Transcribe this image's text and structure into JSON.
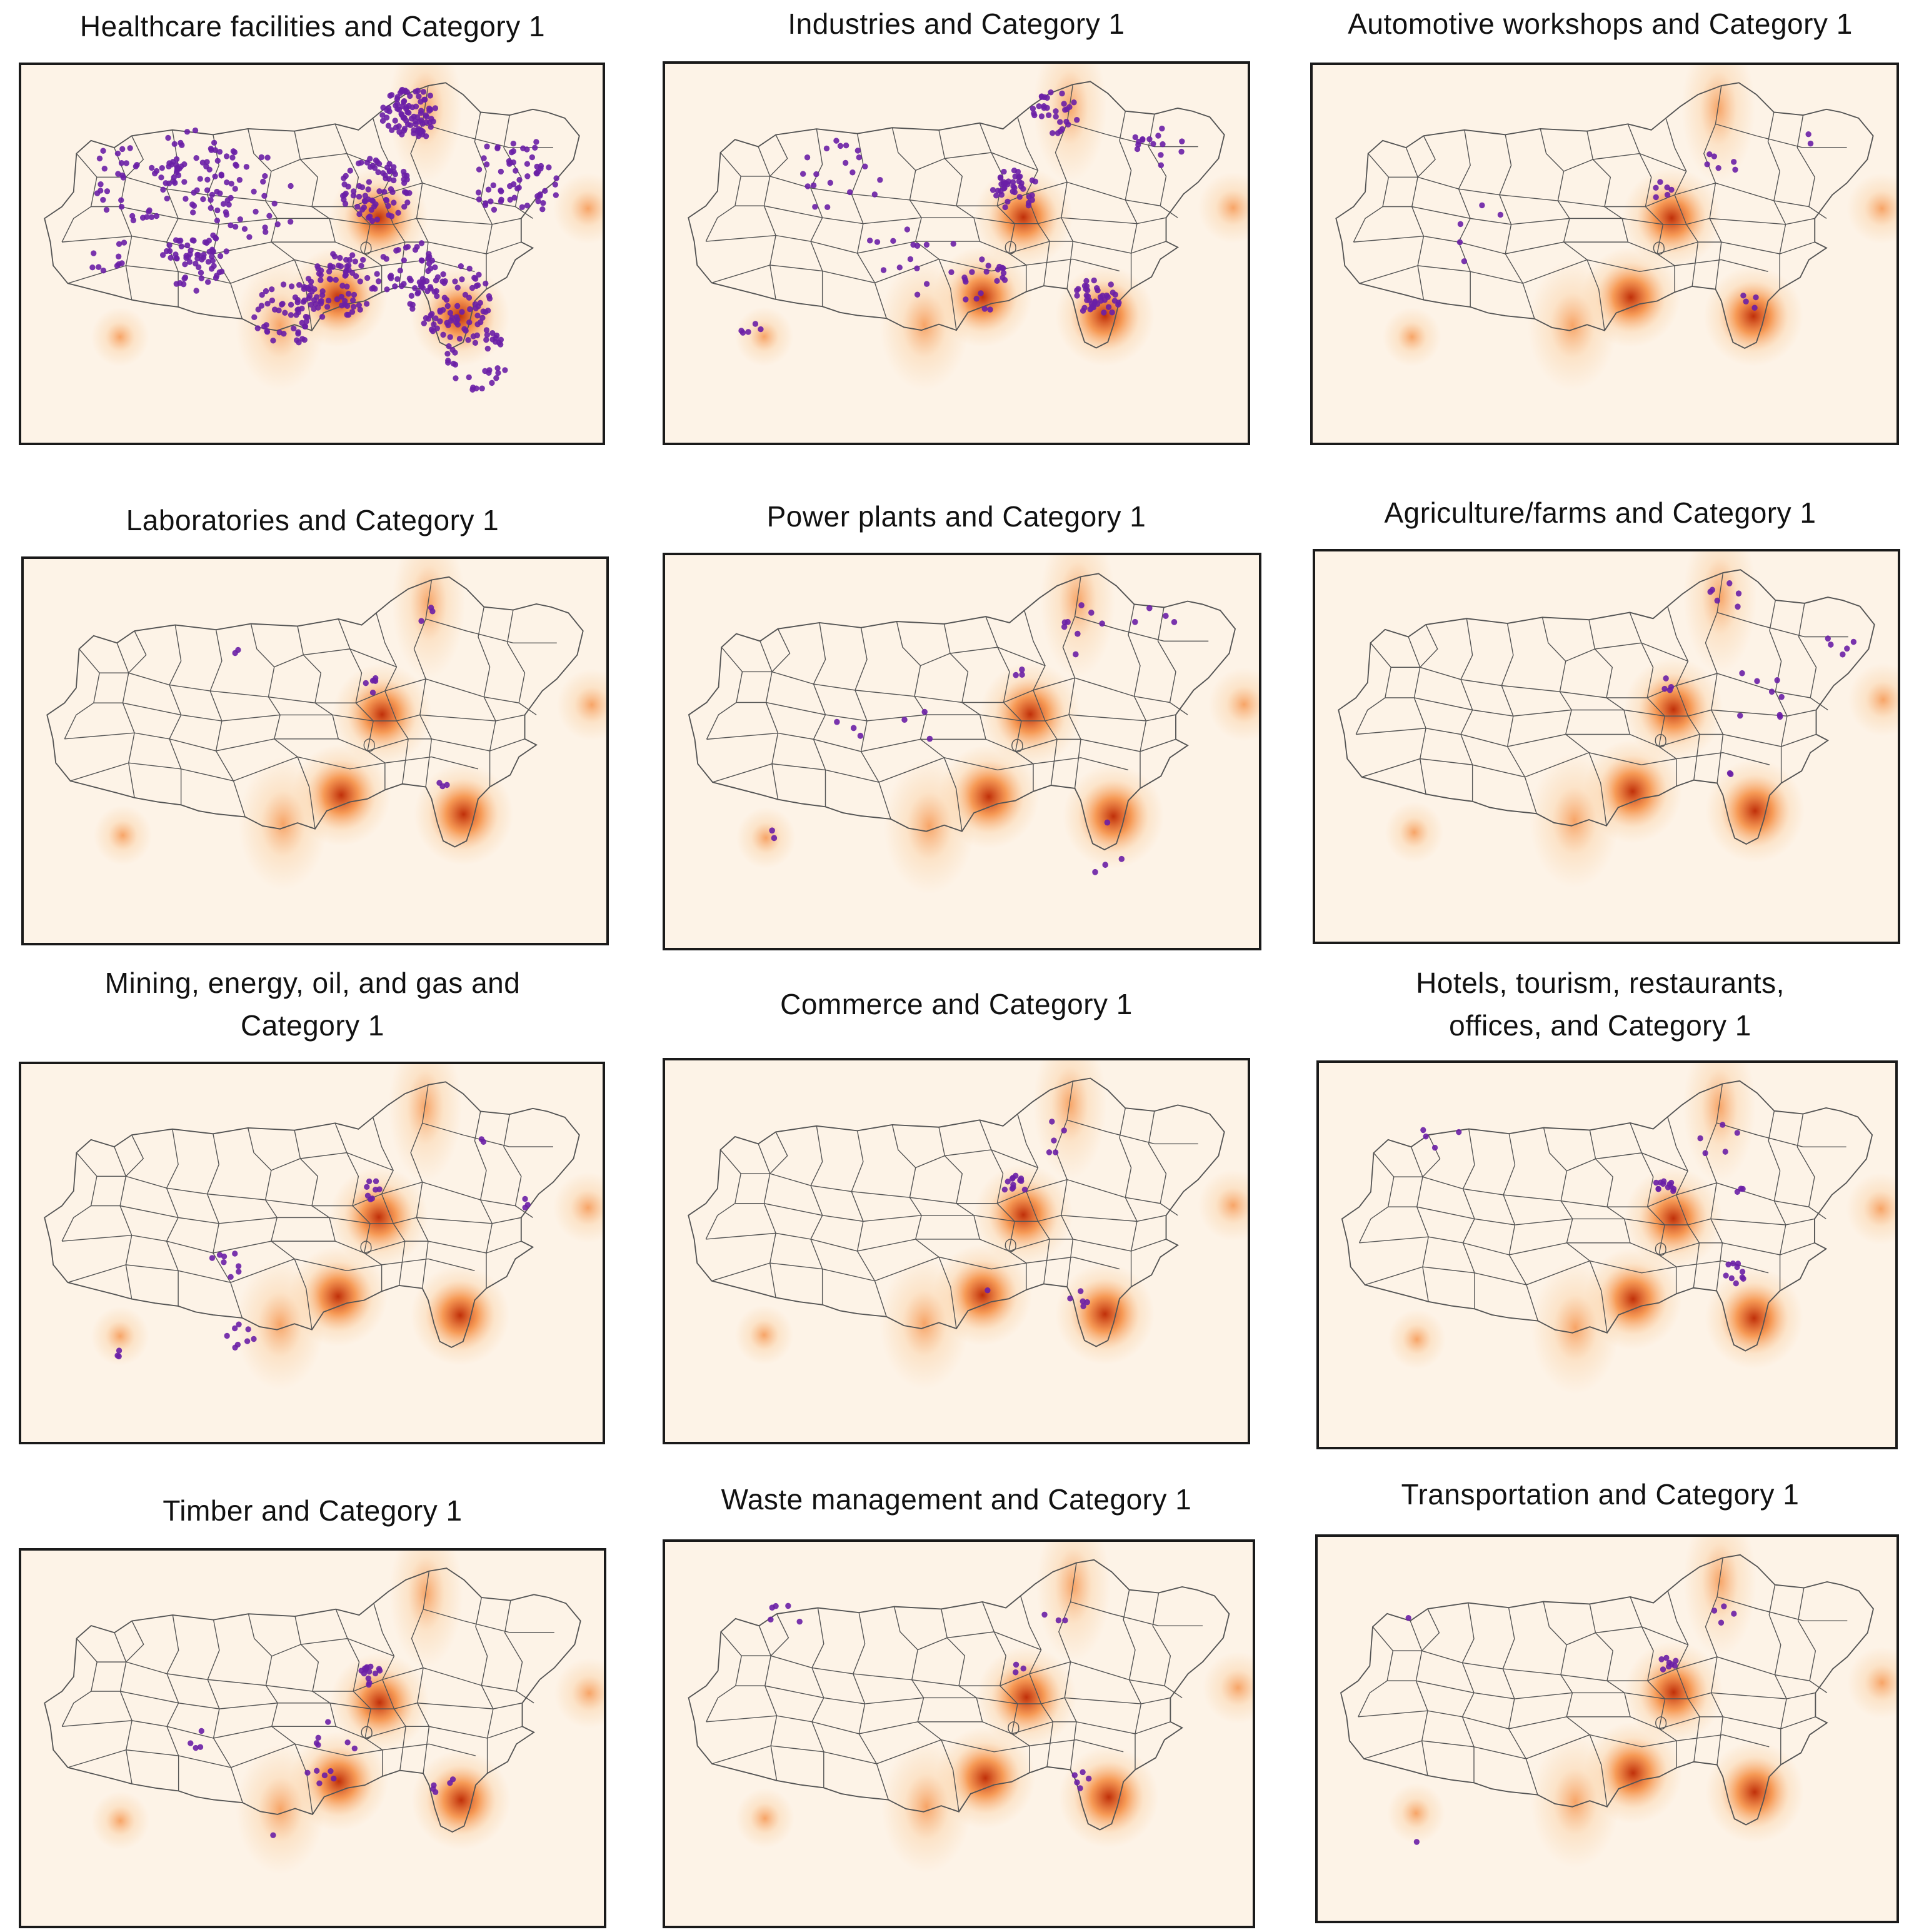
{
  "figure": {
    "colors": {
      "background": "#fdf3e7",
      "boundary": "#555555",
      "point": "#6a1fa6",
      "heat_low": "#fbd7b0",
      "heat_mid": "#f58a3c",
      "heat_high": "#c0300a"
    },
    "panels": [
      {
        "title": [
          "Healthcare facilities and Category 1"
        ],
        "density": "very-high"
      },
      {
        "title": [
          "Industries and Category 1"
        ],
        "density": "high"
      },
      {
        "title": [
          "Automotive workshops and Category 1"
        ],
        "density": "low"
      },
      {
        "title": [
          "Laboratories and Category 1"
        ],
        "density": "low"
      },
      {
        "title": [
          "Power plants and Category 1"
        ],
        "density": "low"
      },
      {
        "title": [
          "Agriculture/farms and Category 1"
        ],
        "density": "low"
      },
      {
        "title": [
          "Mining, energy, oil, and gas and",
          "Category 1"
        ],
        "density": "low"
      },
      {
        "title": [
          "Commerce and Category 1"
        ],
        "density": "low"
      },
      {
        "title": [
          "Hotels, tourism, restaurants,",
          "offices, and Category 1"
        ],
        "density": "low"
      },
      {
        "title": [
          "Timber and Category 1"
        ],
        "density": "low"
      },
      {
        "title": [
          "Waste management and Category 1"
        ],
        "density": "low"
      },
      {
        "title": [
          "Transportation and Category 1"
        ],
        "density": "low"
      }
    ]
  }
}
